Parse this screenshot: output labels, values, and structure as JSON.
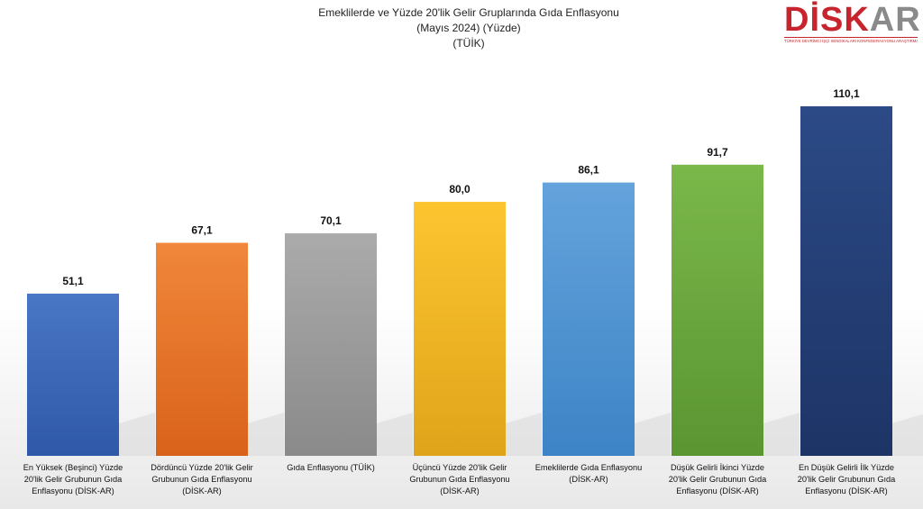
{
  "logo": {
    "word_part1": "DİSK",
    "word_part2": "AR",
    "tagline": "TÜRKİYE DEVRİMCİ İŞÇİ SENDİKALARI KONFEDERASYONU ARAŞTIRMA MERKEZİ"
  },
  "chart_data": {
    "type": "bar",
    "title": "Emeklilerde ve Yüzde 20'lik Gelir Gruplarında Gıda Enflasyonu",
    "subtitle_lines": [
      "(Mayıs 2024) (Yüzde)",
      "(TÜİK)"
    ],
    "xlabel": "",
    "ylabel": "",
    "ylim": [
      0,
      120
    ],
    "grid": false,
    "legend": false,
    "categories": [
      "En Yüksek (Beşinci) Yüzde 20'lik Gelir Grubunun Gıda Enflasyonu (DİSK-AR)",
      "Dördüncü Yüzde 20'lik Gelir Grubunun Gıda Enflasyonu (DİSK-AR)",
      "Gıda Enflasyonu (TÜİK)",
      "Üçüncü Yüzde 20'lik Gelir Grubunun Gıda Enflasyonu (DİSK-AR)",
      "Emeklilerde Gıda Enflasyonu (DİSK-AR)",
      "Düşük Gelirli İkinci Yüzde 20'lik Gelir Grubunun Gıda Enflasyonu (DİSK-AR)",
      "En Düşük Gelirli İlk Yüzde 20'lik Gelir Grubunun Gıda Enflasyonu (DİSK-AR)"
    ],
    "category_lines": [
      [
        "En Yüksek (Beşinci) Yüzde",
        "20'lik Gelir Grubunun Gıda",
        "Enflasyonu (DİSK-AR)"
      ],
      [
        "Dördüncü Yüzde 20'lik Gelir",
        "Grubunun Gıda Enflasyonu",
        "(DİSK-AR)"
      ],
      [
        "Gıda Enflasyonu (TÜİK)"
      ],
      [
        "Üçüncü Yüzde 20'lik Gelir",
        "Grubunun Gıda Enflasyonu",
        "(DİSK-AR)"
      ],
      [
        "Emeklilerde Gıda Enflasyonu",
        "(DİSK-AR)"
      ],
      [
        "Düşük Gelirli İkinci Yüzde",
        "20'lik Gelir Grubunun Gıda",
        "Enflasyonu (DİSK-AR)"
      ],
      [
        "En Düşük Gelirli İlk Yüzde",
        "20'lik Gelir Grubunun Gıda",
        "Enflasyonu (DİSK-AR)"
      ]
    ],
    "values": [
      51.1,
      67.1,
      70.1,
      80.0,
      86.1,
      91.7,
      110.1
    ],
    "value_labels": [
      "51,1",
      "67,1",
      "70,1",
      "80,0",
      "86,1",
      "91,7",
      "110,1"
    ],
    "colors": [
      [
        "#4a76c6",
        "#2f58a8"
      ],
      [
        "#f0873a",
        "#d9621a"
      ],
      [
        "#ababab",
        "#8a8a8a"
      ],
      [
        "#fcc530",
        "#e0a41a"
      ],
      [
        "#64a3dc",
        "#3d84c6"
      ],
      [
        "#7bb84a",
        "#5a9532"
      ],
      [
        "#2c4a86",
        "#1d3466"
      ]
    ]
  }
}
